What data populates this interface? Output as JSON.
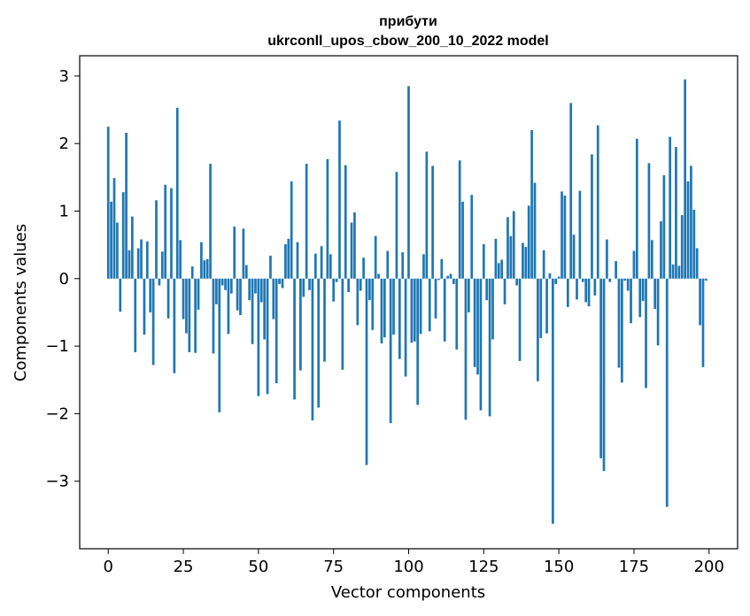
{
  "chart_data": {
    "type": "bar",
    "title_lines": [
      "прибути",
      "ukrconll_upos_cbow_200_10_2022 model"
    ],
    "xlabel": "Vector components",
    "ylabel": "Components values",
    "xlim": [
      -9.5,
      209.5
    ],
    "ylim": [
      -4.0,
      3.3
    ],
    "xticks": [
      0,
      25,
      50,
      75,
      100,
      125,
      150,
      175,
      200
    ],
    "yticks": [
      -3,
      -2,
      -1,
      0,
      1,
      2,
      3
    ],
    "ytick_labels": [
      "−3",
      "−2",
      "−1",
      "0",
      "1",
      "2",
      "3"
    ],
    "grid": false,
    "bar_color": "#1f77b4",
    "values": [
      2.25,
      1.14,
      1.49,
      0.83,
      -0.49,
      1.28,
      2.16,
      0.42,
      0.92,
      -1.09,
      0.45,
      0.58,
      -0.83,
      0.55,
      -0.5,
      -1.28,
      1.16,
      -0.1,
      0.4,
      1.39,
      -0.59,
      1.34,
      -1.4,
      2.53,
      0.57,
      -0.6,
      -0.81,
      -1.09,
      0.18,
      -1.1,
      -0.46,
      0.54,
      0.27,
      0.29,
      1.7,
      -1.11,
      -0.38,
      -1.98,
      -0.1,
      -0.17,
      -0.82,
      -0.22,
      0.77,
      -0.47,
      -0.54,
      0.74,
      0.2,
      -0.32,
      -0.97,
      -0.22,
      -1.74,
      -0.35,
      -0.9,
      -1.71,
      0.34,
      -0.6,
      -1.55,
      -0.08,
      -0.14,
      0.51,
      0.59,
      1.44,
      -1.79,
      0.54,
      -1.36,
      -0.27,
      1.7,
      -0.17,
      -2.1,
      0.37,
      -1.91,
      0.48,
      -1.23,
      1.77,
      0.36,
      -0.34,
      -0.05,
      2.34,
      -1.35,
      1.68,
      -0.2,
      0.83,
      0.98,
      -0.69,
      -0.18,
      0.31,
      -2.76,
      -0.32,
      -0.76,
      0.63,
      0.07,
      -0.96,
      -0.87,
      0.41,
      -2.14,
      -0.83,
      1.58,
      -1.19,
      0.39,
      -1.45,
      2.85,
      -0.95,
      -0.93,
      -1.87,
      -0.82,
      0.36,
      1.88,
      -0.78,
      1.67,
      -0.59,
      -0.02,
      0.29,
      -0.93,
      0.04,
      0.07,
      -0.08,
      -1.05,
      1.75,
      1.14,
      -2.09,
      -0.5,
      1.24,
      -1.31,
      -1.42,
      -1.95,
      0.51,
      -0.32,
      -2.04,
      -0.9,
      0.59,
      0.23,
      0.28,
      -0.38,
      0.91,
      0.63,
      1.0,
      -0.1,
      -1.22,
      0.53,
      0.47,
      1.08,
      2.2,
      1.42,
      -1.52,
      -0.88,
      0.42,
      -0.81,
      0.08,
      -3.63,
      -0.08,
      0.03,
      1.29,
      1.23,
      -0.42,
      2.6,
      0.65,
      -0.31,
      1.3,
      -0.05,
      -0.35,
      -0.41,
      1.84,
      -0.25,
      2.27,
      -2.66,
      -2.85,
      0.58,
      -0.05,
      0.0,
      0.26,
      -1.32,
      -1.54,
      -0.03,
      -0.18,
      -0.66,
      0.41,
      2.07,
      -0.57,
      -0.33,
      -1.62,
      1.71,
      0.57,
      -0.45,
      -0.99,
      0.85,
      1.53,
      -3.38,
      2.1,
      0.21,
      1.95,
      0.19,
      0.94,
      2.95,
      1.44,
      1.67,
      1.02,
      0.45,
      -0.69,
      -1.31,
      -0.03
    ]
  }
}
